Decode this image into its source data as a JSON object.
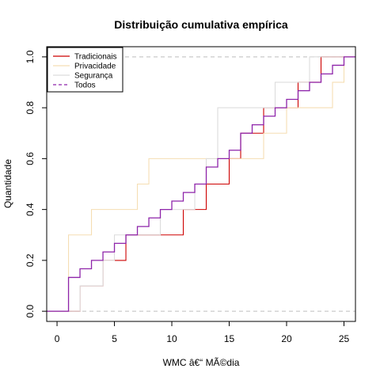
{
  "chart_data": {
    "type": "line",
    "subtype": "ecdf-step",
    "title": "Distribuição cumulativa empírica",
    "xlabel": "WMC â€“ MÃ©dia",
    "ylabel": "Quantidade",
    "xlim": [
      -0.9,
      26
    ],
    "ylim": [
      -0.04,
      1.04
    ],
    "xticks": [
      0,
      5,
      10,
      15,
      20,
      25
    ],
    "yticks": [
      0.0,
      0.2,
      0.4,
      0.6,
      0.8,
      1.0
    ],
    "ytick_labels": [
      "0.0",
      "0.2",
      "0.4",
      "0.6",
      "0.8",
      "1.0"
    ],
    "reference_lines": [
      0,
      1
    ],
    "reference_line_color": "#bebebe",
    "legend_position": "top-left",
    "series": [
      {
        "name": "Tradicionais",
        "color": "#cd0000",
        "dash": "solid",
        "x": [
          2,
          4,
          6,
          11,
          13,
          15,
          16,
          18,
          21,
          23
        ],
        "y": [
          0.1,
          0.2,
          0.3,
          0.4,
          0.5,
          0.6,
          0.7,
          0.8,
          0.9,
          1.0
        ]
      },
      {
        "name": "Privacidade",
        "color": "#f5deb3",
        "dash": "solid",
        "x": [
          1,
          3,
          7,
          8,
          12,
          14,
          18,
          20,
          24,
          25
        ],
        "y": [
          0.3,
          0.4,
          0.5,
          0.6,
          0.6,
          0.6,
          0.7,
          0.8,
          0.9,
          1.0
        ]
      },
      {
        "name": "Segurança",
        "color": "#dcdcdc",
        "dash": "solid",
        "x": [
          2,
          4,
          5,
          9,
          12,
          13,
          14,
          17,
          19,
          22
        ],
        "y": [
          0.1,
          0.2,
          0.3,
          0.4,
          0.5,
          0.6,
          0.8,
          0.8,
          0.9,
          1.0
        ]
      },
      {
        "name": "Todos",
        "color": "#8e24aa",
        "dash": "dashed",
        "x": [
          1,
          2,
          3,
          4,
          5,
          6,
          7,
          8,
          9,
          10,
          11,
          12,
          13,
          14,
          15,
          16,
          17,
          18,
          19,
          20,
          21,
          22,
          23,
          24,
          25
        ],
        "y": [
          0.133,
          0.167,
          0.2,
          0.233,
          0.267,
          0.3,
          0.333,
          0.367,
          0.4,
          0.433,
          0.467,
          0.5,
          0.567,
          0.6,
          0.633,
          0.7,
          0.733,
          0.767,
          0.8,
          0.833,
          0.867,
          0.9,
          0.933,
          0.967,
          1.0
        ]
      }
    ]
  }
}
